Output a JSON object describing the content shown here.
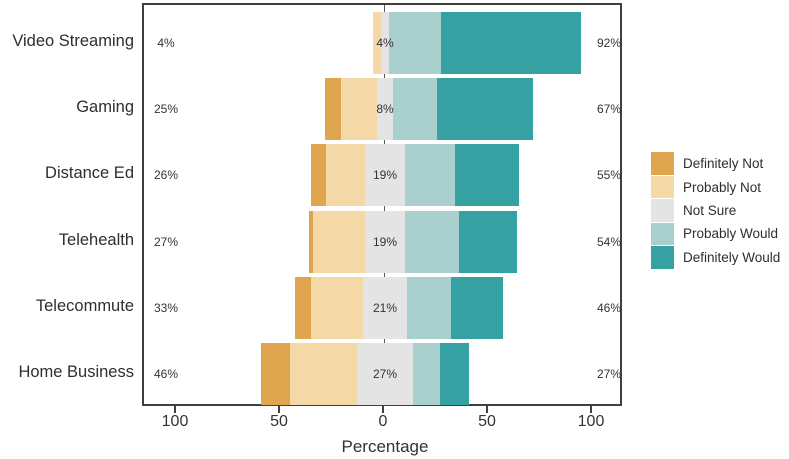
{
  "chart_data": {
    "type": "diverging_stacked_bar",
    "title": "",
    "xlabel": "Percentage",
    "grid": false,
    "legend_position": "right",
    "xlim": [
      -116,
      115
    ],
    "x_ticks": [
      {
        "label": "100",
        "value": -100
      },
      {
        "label": "50",
        "value": -50
      },
      {
        "label": "0",
        "value": 0
      },
      {
        "label": "50",
        "value": 50
      },
      {
        "label": "100",
        "value": 100
      }
    ],
    "legend": [
      {
        "key": "definitely_not",
        "label": "Definitely Not",
        "color": "#E0A64F"
      },
      {
        "key": "probably_not",
        "label": "Probably Not",
        "color": "#F4D8A6"
      },
      {
        "key": "not_sure",
        "label": "Not Sure",
        "color": "#E4E4E4"
      },
      {
        "key": "probably_would",
        "label": "Probably Would",
        "color": "#A9CFCE"
      },
      {
        "key": "definitely_would",
        "label": "Definitely Would",
        "color": "#35A1A2"
      }
    ],
    "rows": [
      {
        "category": "Video Streaming",
        "left_label": "4%",
        "center_label": "4%",
        "right_label": "92%",
        "values": {
          "definitely_not": 0,
          "probably_not": 4,
          "not_sure": 4,
          "probably_would": 25,
          "definitely_would": 67
        }
      },
      {
        "category": "Gaming",
        "left_label": "25%",
        "center_label": "8%",
        "right_label": "67%",
        "values": {
          "definitely_not": 8,
          "probably_not": 17,
          "not_sure": 8,
          "probably_would": 21,
          "definitely_would": 46
        }
      },
      {
        "category": "Distance Ed",
        "left_label": "26%",
        "center_label": "19%",
        "right_label": "55%",
        "values": {
          "definitely_not": 7,
          "probably_not": 19,
          "not_sure": 19,
          "probably_would": 24,
          "definitely_would": 31
        }
      },
      {
        "category": "Telehealth",
        "left_label": "27%",
        "center_label": "19%",
        "right_label": "54%",
        "values": {
          "definitely_not": 2,
          "probably_not": 25,
          "not_sure": 19,
          "probably_would": 26,
          "definitely_would": 28
        }
      },
      {
        "category": "Telecommute",
        "left_label": "33%",
        "center_label": "21%",
        "right_label": "46%",
        "values": {
          "definitely_not": 8,
          "probably_not": 25,
          "not_sure": 21,
          "probably_would": 21,
          "definitely_would": 25
        }
      },
      {
        "category": "Home Business",
        "left_label": "46%",
        "center_label": "27%",
        "right_label": "27%",
        "values": {
          "definitely_not": 14,
          "probably_not": 32,
          "not_sure": 27,
          "probably_would": 13,
          "definitely_would": 14
        }
      }
    ]
  }
}
